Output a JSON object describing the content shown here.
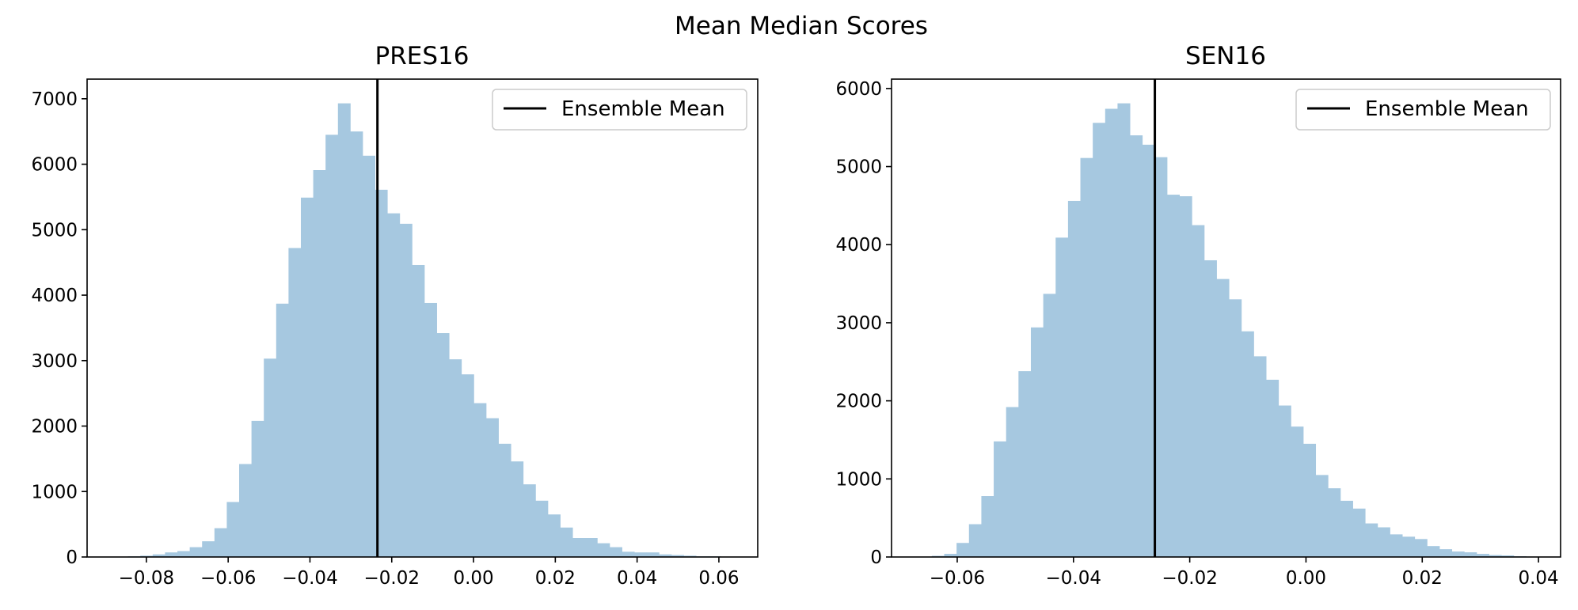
{
  "figure": {
    "suptitle": "Mean Median Scores"
  },
  "colors": {
    "bar": "#a6c8e0",
    "mean_line": "#000000",
    "axes": "#000000"
  },
  "chart_data": [
    {
      "type": "bar",
      "title": "PRES16",
      "xlabel": "",
      "ylabel": "",
      "xlim": [
        -0.0945,
        0.0695
      ],
      "ylim": [
        0,
        7300
      ],
      "xticks": [
        -0.08,
        -0.06,
        -0.04,
        -0.02,
        0.0,
        0.02,
        0.04,
        0.06
      ],
      "xtick_labels": [
        "−0.08",
        "−0.06",
        "−0.04",
        "−0.02",
        "0.00",
        "0.02",
        "0.04",
        "0.06"
      ],
      "yticks": [
        0,
        1000,
        2000,
        3000,
        4000,
        5000,
        6000,
        7000
      ],
      "ytick_labels": [
        "0",
        "1000",
        "2000",
        "3000",
        "4000",
        "5000",
        "6000",
        "7000"
      ],
      "bin_start": -0.0845,
      "bin_width": 0.00302,
      "values": [
        10,
        20,
        40,
        70,
        90,
        150,
        240,
        440,
        840,
        1420,
        2080,
        3030,
        3870,
        4720,
        5490,
        5910,
        6450,
        6930,
        6500,
        6130,
        5610,
        5250,
        5090,
        4460,
        3880,
        3420,
        3020,
        2790,
        2350,
        2120,
        1730,
        1460,
        1110,
        860,
        650,
        450,
        290,
        290,
        210,
        150,
        80,
        70,
        70,
        40,
        30,
        20,
        10,
        10,
        5,
        5
      ],
      "ensemble_mean": -0.0235,
      "legend": {
        "label": "Ensemble Mean",
        "position": "upper right"
      },
      "grid": false
    },
    {
      "type": "bar",
      "title": "SEN16",
      "xlabel": "",
      "ylabel": "",
      "xlim": [
        -0.0713,
        0.0438
      ],
      "ylim": [
        0,
        6120
      ],
      "xticks": [
        -0.06,
        -0.04,
        -0.02,
        0.0,
        0.02,
        0.04
      ],
      "xtick_labels": [
        "−0.06",
        "−0.04",
        "−0.02",
        "0.00",
        "0.02",
        "0.04"
      ],
      "yticks": [
        0,
        1000,
        2000,
        3000,
        4000,
        5000,
        6000
      ],
      "ytick_labels": [
        "0",
        "1000",
        "2000",
        "3000",
        "4000",
        "5000",
        "6000"
      ],
      "bin_start": -0.0665,
      "bin_width": 0.00213,
      "values": [
        5,
        15,
        40,
        180,
        420,
        780,
        1480,
        1920,
        2380,
        2940,
        3370,
        4090,
        4560,
        5110,
        5560,
        5740,
        5810,
        5400,
        5280,
        5120,
        4640,
        4620,
        4250,
        3800,
        3560,
        3300,
        2890,
        2570,
        2270,
        1940,
        1670,
        1450,
        1050,
        880,
        720,
        620,
        430,
        380,
        290,
        260,
        230,
        140,
        100,
        70,
        60,
        40,
        25,
        20,
        10,
        5
      ],
      "ensemble_mean": -0.026,
      "legend": {
        "label": "Ensemble Mean",
        "position": "upper right"
      },
      "grid": false
    }
  ]
}
